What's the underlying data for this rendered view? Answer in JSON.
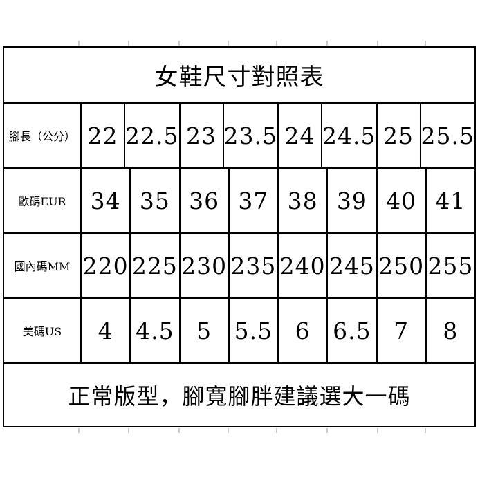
{
  "title": "女鞋尺寸對照表",
  "table": {
    "rows": [
      {
        "label": "腳長（公分）",
        "values": [
          "22",
          "22.5",
          "23",
          "23.5",
          "24",
          "24.5",
          "25",
          "25.5"
        ]
      },
      {
        "label": "歐碼EUR",
        "values": [
          "34",
          "35",
          "36",
          "37",
          "38",
          "39",
          "40",
          "41"
        ]
      },
      {
        "label": "國內碼MM",
        "values": [
          "220",
          "225",
          "230",
          "235",
          "240",
          "245",
          "250",
          "255"
        ]
      },
      {
        "label": "美碼US",
        "values": [
          "4",
          "4.5",
          "5",
          "5.5",
          "6",
          "6.5",
          "7",
          "8"
        ]
      }
    ]
  },
  "footer_note": "正常版型，腳寬腳胖建議選大一碼",
  "colors": {
    "border": "#000000",
    "text": "#000000",
    "background": "#ffffff",
    "tick": "#cccccc"
  }
}
